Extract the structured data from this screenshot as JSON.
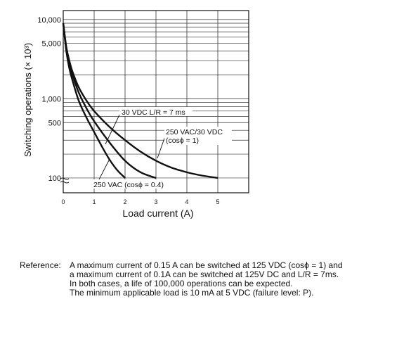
{
  "chart_data": {
    "type": "line",
    "xlabel": "Load current (A)",
    "ylabel": "Switching operations (× 10³)",
    "y_scale": "log",
    "grid": true,
    "xlim": [
      0,
      6
    ],
    "ylim": [
      65,
      13000
    ],
    "x_ticks": [
      "0",
      "1",
      "2",
      "3",
      "4",
      "5"
    ],
    "y_ticks": [
      {
        "value": 10000,
        "label": "10,000"
      },
      {
        "value": 5000,
        "label": "5,000"
      },
      {
        "value": 1000,
        "label": "1,000"
      },
      {
        "value": 500,
        "label": "500"
      },
      {
        "value": 100,
        "label": "100"
      }
    ],
    "series": [
      {
        "name": "250 VAC (cosϕ = 0.4)",
        "x": [
          0.0,
          0.1,
          0.2,
          0.3,
          0.5,
          0.75,
          1.0,
          1.25,
          1.5,
          1.75,
          2.0
        ],
        "y": [
          9000,
          4000,
          2400,
          1700,
          950,
          580,
          380,
          250,
          170,
          125,
          100
        ]
      },
      {
        "name": "30 VDC L/R = 7 ms",
        "x": [
          0.0,
          0.1,
          0.2,
          0.3,
          0.5,
          0.75,
          1.0,
          1.5,
          2.0,
          2.5,
          3.0
        ],
        "y": [
          9000,
          4300,
          2800,
          2000,
          1200,
          760,
          520,
          280,
          165,
          118,
          100
        ]
      },
      {
        "name": "250 VAC/30 VDC (cosϕ = 1)",
        "x": [
          0.0,
          0.1,
          0.2,
          0.3,
          0.5,
          0.75,
          1.0,
          1.5,
          2.0,
          2.5,
          3.0,
          3.5,
          4.0,
          4.5,
          5.0
        ],
        "y": [
          9000,
          4500,
          3000,
          2200,
          1400,
          950,
          700,
          440,
          300,
          215,
          165,
          135,
          118,
          107,
          100
        ]
      }
    ],
    "annotations": [
      {
        "text": "30 VDC L/R = 7 ms"
      },
      {
        "text": "250 VAC/30 VDC"
      },
      {
        "text": "(cosϕ = 1)"
      },
      {
        "text": "250 VAC (cosϕ = 0.4)"
      }
    ]
  },
  "reference": {
    "label": "Reference:",
    "lines": [
      "A maximum current of 0.15 A can be switched at 125 VDC (cosϕ = 1) and",
      "a maximum current of 0.1A can be switched at 125V DC and L/R = 7ms.",
      "In both cases, a life of 100,000 operations can be expected.",
      "The minimum applicable load is 10 mA at 5 VDC (failure level: P)."
    ]
  }
}
